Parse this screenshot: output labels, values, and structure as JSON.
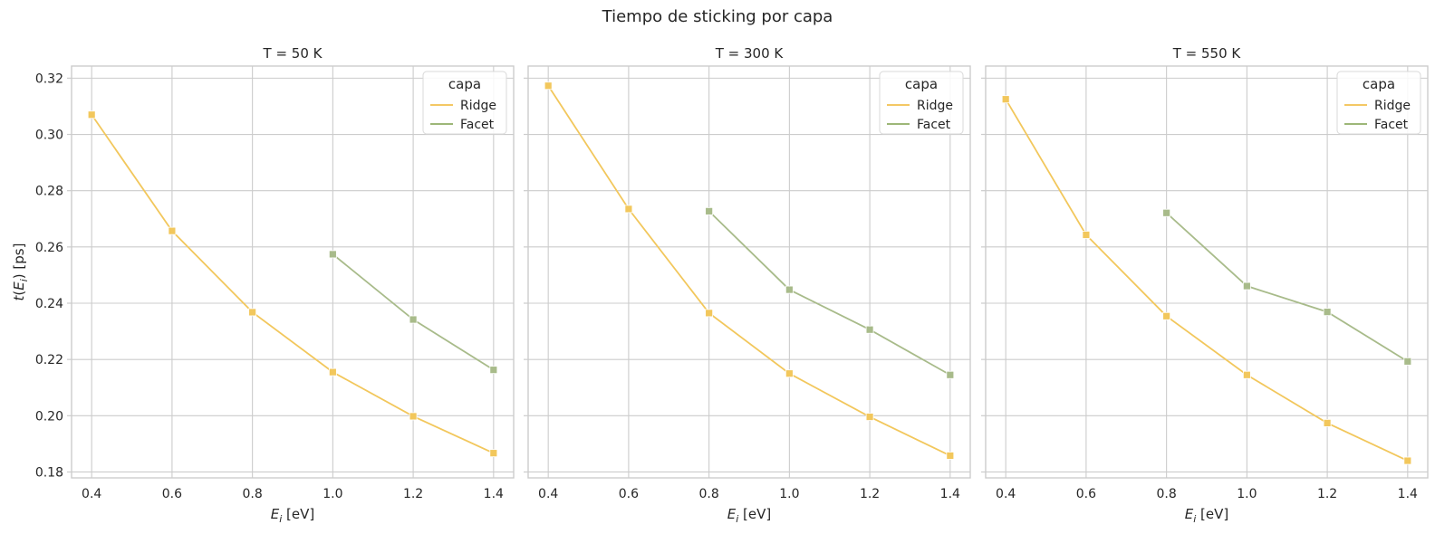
{
  "chart_data": {
    "type": "line",
    "title": "Tiempo de sticking por capa",
    "panels": [
      {
        "title": "T = 50 K",
        "series": [
          {
            "name": "Ridge",
            "x": [
              0.4,
              0.6,
              0.8,
              1.0,
              1.2,
              1.4
            ],
            "values": [
              0.307,
              0.2657,
              0.2368,
              0.2155,
              0.1998,
              0.1867
            ]
          },
          {
            "name": "Facet",
            "x": [
              1.0,
              1.2,
              1.4
            ],
            "values": [
              0.2574,
              0.2342,
              0.2163
            ]
          }
        ]
      },
      {
        "title": "T = 300 K",
        "series": [
          {
            "name": "Ridge",
            "x": [
              0.4,
              0.6,
              0.8,
              1.0,
              1.2,
              1.4
            ],
            "values": [
              0.3173,
              0.2735,
              0.2365,
              0.215,
              0.1996,
              0.1858
            ]
          },
          {
            "name": "Facet",
            "x": [
              0.8,
              1.0,
              1.2,
              1.4
            ],
            "values": [
              0.2727,
              0.2448,
              0.2306,
              0.2145
            ]
          }
        ]
      },
      {
        "title": "T = 550 K",
        "series": [
          {
            "name": "Ridge",
            "x": [
              0.4,
              0.6,
              0.8,
              1.0,
              1.2,
              1.4
            ],
            "values": [
              0.3125,
              0.2643,
              0.2354,
              0.2145,
              0.1974,
              0.184
            ]
          },
          {
            "name": "Facet",
            "x": [
              0.8,
              1.0,
              1.2,
              1.4
            ],
            "values": [
              0.2721,
              0.2461,
              0.2369,
              0.2193
            ]
          }
        ]
      }
    ],
    "xlabel": "E_i [eV]",
    "xlabel_parts": {
      "symbol": "E",
      "subscript": "i",
      "unit": " [eV]"
    },
    "ylabel": "t(E_i) [ps]",
    "ylabel_parts": {
      "func": "t(",
      "symbol": "E",
      "subscript": "i",
      "close": ")",
      "unit": " [ps]"
    },
    "xticks": [
      0.4,
      0.6,
      0.8,
      1.0,
      1.2,
      1.4
    ],
    "xtick_labels": [
      "0.4",
      "0.6",
      "0.8",
      "1.0",
      "1.2",
      "1.4"
    ],
    "yticks": [
      0.18,
      0.2,
      0.22,
      0.24,
      0.26,
      0.28,
      0.3,
      0.32
    ],
    "ytick_labels": [
      "0.18",
      "0.20",
      "0.22",
      "0.24",
      "0.26",
      "0.28",
      "0.30",
      "0.32"
    ],
    "xlim": [
      0.35,
      1.45
    ],
    "ylim": [
      0.1779,
      0.3243
    ],
    "grid": true,
    "shared_y": true,
    "marker": "square",
    "legend": {
      "title": "capa",
      "entries": [
        "Ridge",
        "Facet"
      ],
      "placement": "top-right"
    },
    "colors": {
      "Ridge": "#f2c75c",
      "Facet": "#a8bb8a",
      "legend_Ridge": "#f2c14e",
      "legend_Facet": "#8fad64",
      "grid": "#cccccc",
      "spine": "#cccccc"
    }
  }
}
